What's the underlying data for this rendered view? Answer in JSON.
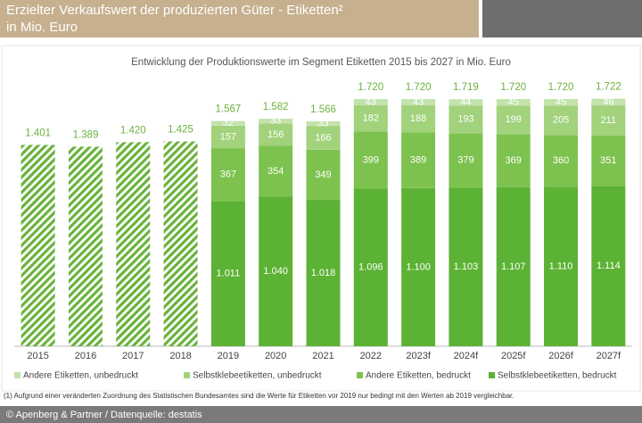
{
  "header": {
    "title": "Erzielter Verkaufswert der produzierten Güter - Etiketten²",
    "subtitle": "in Mio. Euro"
  },
  "chart_data": {
    "type": "bar",
    "title": "Entwicklung der Produktionswerte im Segment Etiketten 2015 bis 2027 in Mio. Euro",
    "categories": [
      "2015",
      "2016",
      "2017",
      "2018",
      "2019",
      "2020",
      "2021",
      "2022",
      "2023f",
      "2024f",
      "2025f",
      "2026f",
      "2027f"
    ],
    "series": [
      {
        "name": "Selbstklebeetiketten, bedruckt",
        "color": "#5cb234",
        "values": [
          null,
          null,
          null,
          null,
          1011,
          1040,
          1018,
          1096,
          1100,
          1103,
          1107,
          1110,
          1114
        ],
        "value_labels": [
          null,
          null,
          null,
          null,
          "1.011",
          "1.040",
          "1.018",
          "1.096",
          "1.100",
          "1.103",
          "1.107",
          "1.110",
          "1.114"
        ]
      },
      {
        "name": "Andere Etiketten, bedruckt",
        "color": "#7dc24f",
        "values": [
          null,
          null,
          null,
          null,
          367,
          354,
          349,
          399,
          389,
          379,
          369,
          360,
          351
        ]
      },
      {
        "name": "Selbstklebeetiketten, unbedruckt",
        "color": "#a2d27c",
        "values": [
          null,
          null,
          null,
          null,
          157,
          156,
          166,
          182,
          188,
          193,
          199,
          205,
          211
        ]
      },
      {
        "name": "Andere Etiketten, unbedruckt",
        "color": "#c4e2ac",
        "values": [
          null,
          null,
          null,
          null,
          32,
          33,
          33,
          43,
          43,
          44,
          45,
          45,
          46
        ]
      }
    ],
    "totals": {
      "color": "#6bb23e",
      "values": [
        1401,
        1389,
        1420,
        1425,
        1567,
        1582,
        1566,
        1720,
        1720,
        1719,
        1720,
        1720,
        1722
      ],
      "value_labels": [
        "1.401",
        "1.389",
        "1.420",
        "1.425",
        "1.567",
        "1.582",
        "1.566",
        "1.720",
        "1.720",
        "1.719",
        "1.720",
        "1.720",
        "1.722"
      ]
    },
    "ylim": [
      0,
      1900
    ],
    "legend": "bottom"
  },
  "footnote": "(1)  Aufgrund einer veränderten Zuordnung des Statistischen Bundesamtes sind die Werte für Etiketten vor 2019 nur bedingt mit den Werten ab 2019 vergleichbar.",
  "footer": "© Apenberg & Partner / Datenquelle: destatis"
}
